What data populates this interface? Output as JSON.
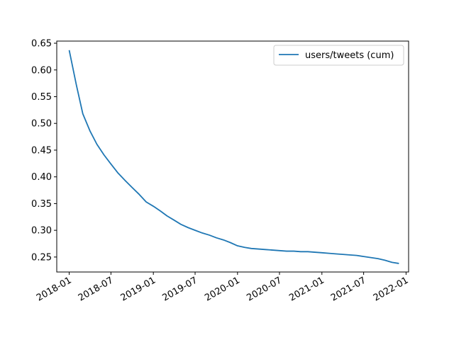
{
  "chart_data": {
    "type": "line",
    "title": "",
    "xlabel": "",
    "ylabel": "",
    "x_tick_labels": [
      "2018-01",
      "2018-07",
      "2019-01",
      "2019-07",
      "2020-01",
      "2020-07",
      "2021-01",
      "2021-07",
      "2022-01"
    ],
    "y_tick_labels": [
      "0.25",
      "0.30",
      "0.35",
      "0.40",
      "0.45",
      "0.50",
      "0.55",
      "0.60",
      "0.65"
    ],
    "y_ticks": [
      0.25,
      0.3,
      0.35,
      0.4,
      0.45,
      0.5,
      0.55,
      0.6,
      0.65
    ],
    "xlim": [
      "2017-11-08",
      "2022-01-12"
    ],
    "ylim": [
      0.222,
      0.654
    ],
    "grid": false,
    "legend_position": "top-right",
    "series": [
      {
        "name": "users/tweets (cum)",
        "color": "#1f77b4",
        "x": [
          "2018-01-01",
          "2018-02-01",
          "2018-03-01",
          "2018-04-01",
          "2018-05-01",
          "2018-06-01",
          "2018-07-01",
          "2018-08-01",
          "2018-09-01",
          "2018-10-01",
          "2018-11-01",
          "2018-12-01",
          "2019-01-01",
          "2019-02-01",
          "2019-03-01",
          "2019-04-01",
          "2019-05-01",
          "2019-06-01",
          "2019-07-01",
          "2019-08-01",
          "2019-09-01",
          "2019-10-01",
          "2019-11-01",
          "2019-12-01",
          "2020-01-01",
          "2020-02-01",
          "2020-03-01",
          "2020-04-01",
          "2020-05-01",
          "2020-06-01",
          "2020-07-01",
          "2020-08-01",
          "2020-09-01",
          "2020-10-01",
          "2020-11-01",
          "2020-12-01",
          "2021-01-01",
          "2021-02-01",
          "2021-03-01",
          "2021-04-01",
          "2021-05-01",
          "2021-06-01",
          "2021-07-01",
          "2021-08-01",
          "2021-09-01",
          "2021-10-01",
          "2021-11-01",
          "2021-12-01"
        ],
        "y": [
          0.637,
          0.572,
          0.518,
          0.486,
          0.461,
          0.441,
          0.424,
          0.407,
          0.393,
          0.38,
          0.367,
          0.353,
          0.345,
          0.336,
          0.327,
          0.319,
          0.311,
          0.305,
          0.3,
          0.295,
          0.291,
          0.286,
          0.282,
          0.277,
          0.271,
          0.268,
          0.266,
          0.265,
          0.264,
          0.263,
          0.262,
          0.261,
          0.261,
          0.26,
          0.26,
          0.259,
          0.258,
          0.257,
          0.256,
          0.255,
          0.254,
          0.253,
          0.251,
          0.249,
          0.247,
          0.244,
          0.24,
          0.238
        ]
      }
    ]
  }
}
